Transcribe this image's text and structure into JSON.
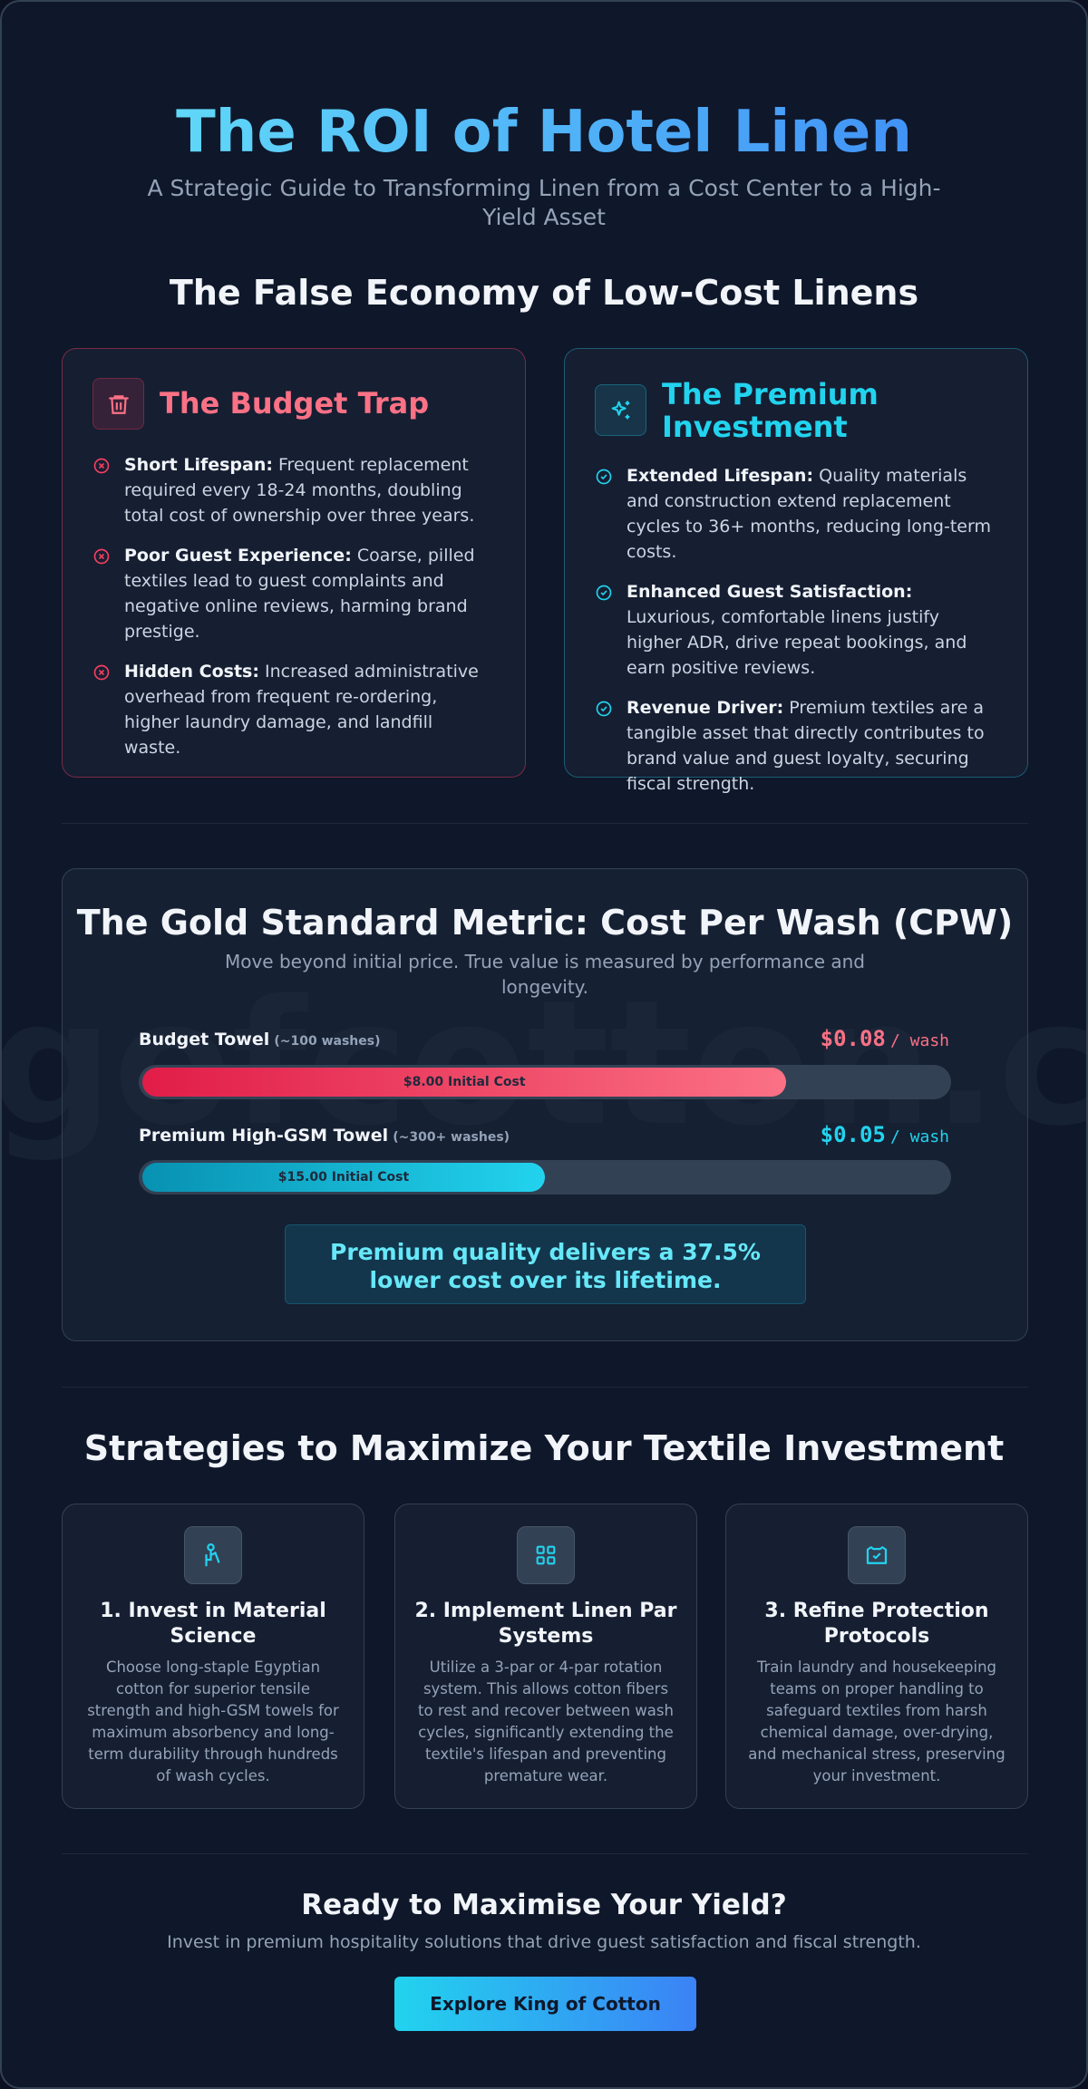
{
  "header": {
    "title": "The ROI of Hotel Linen",
    "subtitle": "A Strategic Guide to Transforming Linen from a Cost Center to a High-Yield Asset"
  },
  "comparison": {
    "title": "The False Economy of Low-Cost Linens",
    "budget": {
      "title": "The Budget Trap",
      "items": [
        {
          "label": "Short Lifespan:",
          "text": "Frequent replacement required every 18-24 months, doubling total cost of ownership over three years."
        },
        {
          "label": "Poor Guest Experience:",
          "text": "Coarse, pilled textiles lead to guest complaints and negative online reviews, harming brand prestige."
        },
        {
          "label": "Hidden Costs:",
          "text": "Increased administrative overhead from frequent re-ordering, higher laundry damage, and landfill waste."
        }
      ]
    },
    "premium": {
      "title": "The Premium Investment",
      "items": [
        {
          "label": "Extended Lifespan:",
          "text": "Quality materials and construction extend replacement cycles to 36+ months, reducing long-term costs."
        },
        {
          "label": "Enhanced Guest Satisfaction:",
          "text": "Luxurious, comfortable linens justify higher ADR, drive repeat bookings, and earn positive reviews."
        },
        {
          "label": "Revenue Driver:",
          "text": "Premium textiles are a tangible asset that directly contributes to brand value and guest loyalty, securing fiscal strength."
        }
      ]
    }
  },
  "cpw": {
    "watermark": "kingofcotton.com",
    "title": "The Gold Standard Metric: Cost Per Wash (CPW)",
    "subtitle": "Move beyond initial price. True value is measured by performance and longevity.",
    "rows": [
      {
        "name": "Budget Towel",
        "note": "(~100 washes)",
        "value": 0.08,
        "value_label": "$0.08",
        "unit": "/ wash",
        "bar_label": "$8.00 Initial Cost"
      },
      {
        "name": "Premium High-GSM Towel",
        "note": "(~300+ washes)",
        "value": 0.05,
        "value_label": "$0.05",
        "unit": "/ wash",
        "bar_label": "$15.00 Initial Cost"
      }
    ],
    "callout": "Premium quality delivers a 37.5% lower cost over its lifetime."
  },
  "strategies": {
    "title": "Strategies to Maximize Your Textile Investment",
    "items": [
      {
        "title": "1. Invest in Material Science",
        "text": "Choose long-staple Egyptian cotton for superior tensile strength and high-GSM towels for maximum absorbency and long-term durability through hundreds of wash cycles."
      },
      {
        "title": "2. Implement Linen Par Systems",
        "text": "Utilize a 3-par or 4-par rotation system. This allows cotton fibers to rest and recover between wash cycles, significantly extending the textile's lifespan and preventing premature wear."
      },
      {
        "title": "3. Refine Protection Protocols",
        "text": "Train laundry and housekeeping teams on proper handling to safeguard textiles from harsh chemical damage, over-drying, and mechanical stress, preserving your investment."
      }
    ]
  },
  "cta": {
    "title": "Ready to Maximise Your Yield?",
    "text": "Invest in premium hospitality solutions that drive guest satisfaction and fiscal strength.",
    "button": "Explore King of Cotton"
  }
}
